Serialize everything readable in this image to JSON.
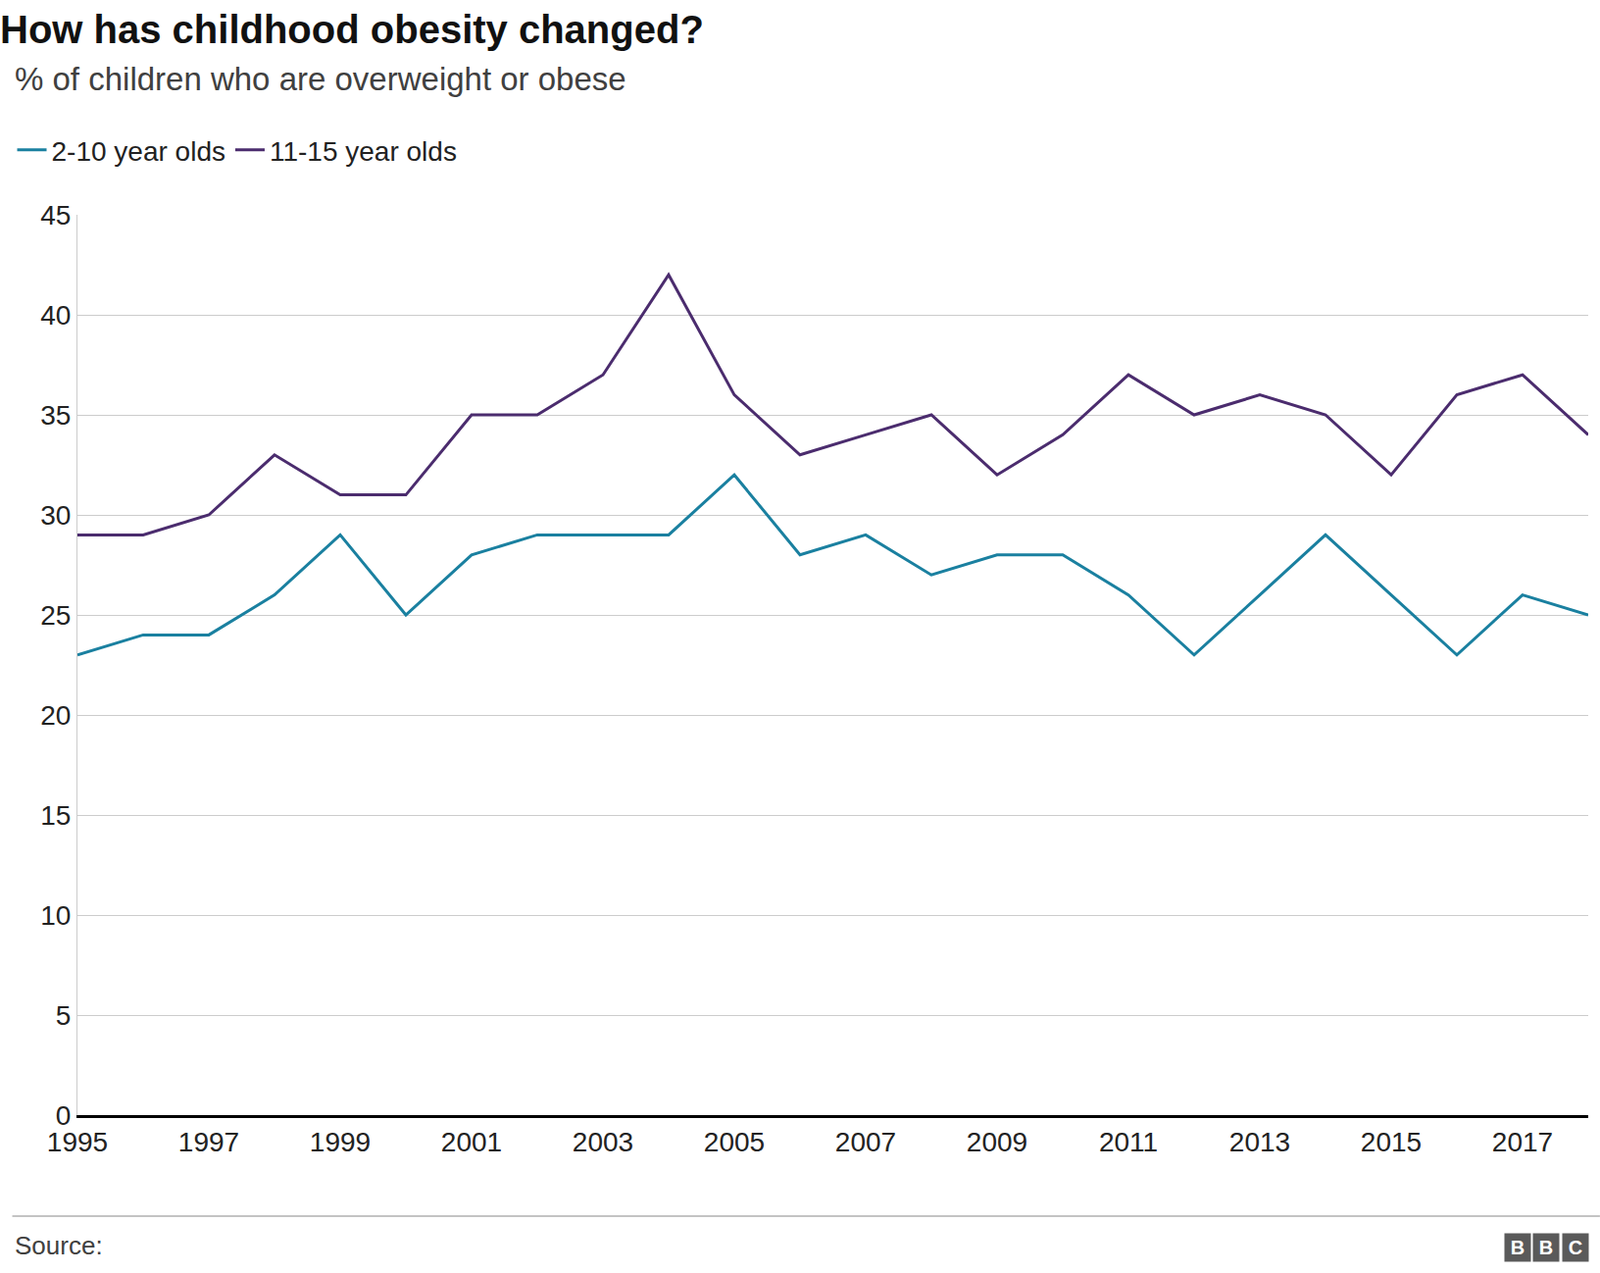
{
  "chart_data": {
    "type": "line",
    "title": "How has childhood obesity changed?",
    "subtitle": "% of children who are overweight or obese",
    "source": "Source:",
    "logo": "BBC",
    "x": [
      1995,
      1996,
      1997,
      1998,
      1999,
      2000,
      2001,
      2002,
      2003,
      2004,
      2005,
      2006,
      2007,
      2008,
      2009,
      2010,
      2011,
      2012,
      2013,
      2014,
      2015,
      2016,
      2017,
      2018
    ],
    "series": [
      {
        "name": "2-10 year olds",
        "color": "#1a80a0",
        "values": [
          23,
          24,
          24,
          26,
          29,
          25,
          28,
          29,
          29,
          29,
          32,
          28,
          29,
          27,
          28,
          28,
          26,
          23,
          26,
          29,
          26,
          23,
          26,
          25
        ]
      },
      {
        "name": "11-15 year olds",
        "color": "#4b2c6e",
        "values": [
          29,
          29,
          30,
          33,
          31,
          31,
          35,
          35,
          37,
          42,
          36,
          33,
          34,
          35,
          32,
          34,
          37,
          35,
          36,
          35,
          32,
          36,
          37,
          34
        ]
      }
    ],
    "xlim": [
      1995,
      2018
    ],
    "xticks": [
      1995,
      1997,
      1999,
      2001,
      2003,
      2005,
      2007,
      2009,
      2011,
      2013,
      2015,
      2017
    ],
    "ylim": [
      0,
      45
    ],
    "yticks": [
      0,
      5,
      10,
      15,
      20,
      25,
      30,
      35,
      40,
      45
    ],
    "grid": true,
    "legend": "top-left"
  }
}
